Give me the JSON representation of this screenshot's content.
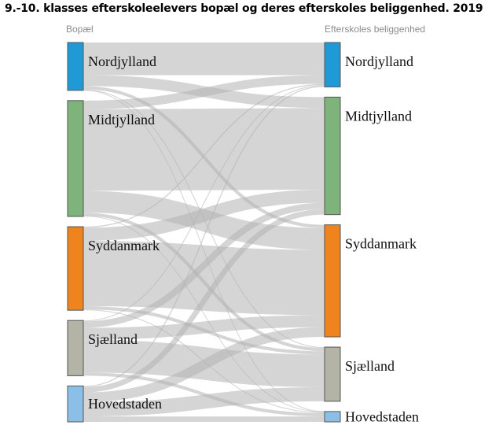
{
  "chart_data": {
    "type": "sankey",
    "title": "9.-10. klasses efterskoleelevers bopæl og deres efterskoles beliggenhed. 2019",
    "source_label": "Bopæl",
    "target_label": "Efterskoles beliggenhed",
    "sources": [
      {
        "name": "Nordjylland",
        "color": "#1f9ad6"
      },
      {
        "name": "Midtjylland",
        "color": "#7fb37c"
      },
      {
        "name": "Syddanmark",
        "color": "#ef841f"
      },
      {
        "name": "Sjælland",
        "color": "#b3b3a6"
      },
      {
        "name": "Hovedstaden",
        "color": "#8cbfe8"
      }
    ],
    "targets": [
      {
        "name": "Nordjylland",
        "color": "#1f9ad6"
      },
      {
        "name": "Midtjylland",
        "color": "#7fb37c"
      },
      {
        "name": "Syddanmark",
        "color": "#ef841f"
      },
      {
        "name": "Sjælland",
        "color": "#b3b3a6"
      },
      {
        "name": "Hovedstaden",
        "color": "#8cbfe8"
      }
    ],
    "flows": [
      [
        3000,
        1000,
        300,
        80,
        20
      ],
      [
        800,
        7500,
        2000,
        300,
        50
      ],
      [
        100,
        1200,
        6000,
        300,
        80
      ],
      [
        80,
        600,
        1100,
        3000,
        300
      ],
      [
        100,
        500,
        900,
        1300,
        500
      ]
    ]
  }
}
